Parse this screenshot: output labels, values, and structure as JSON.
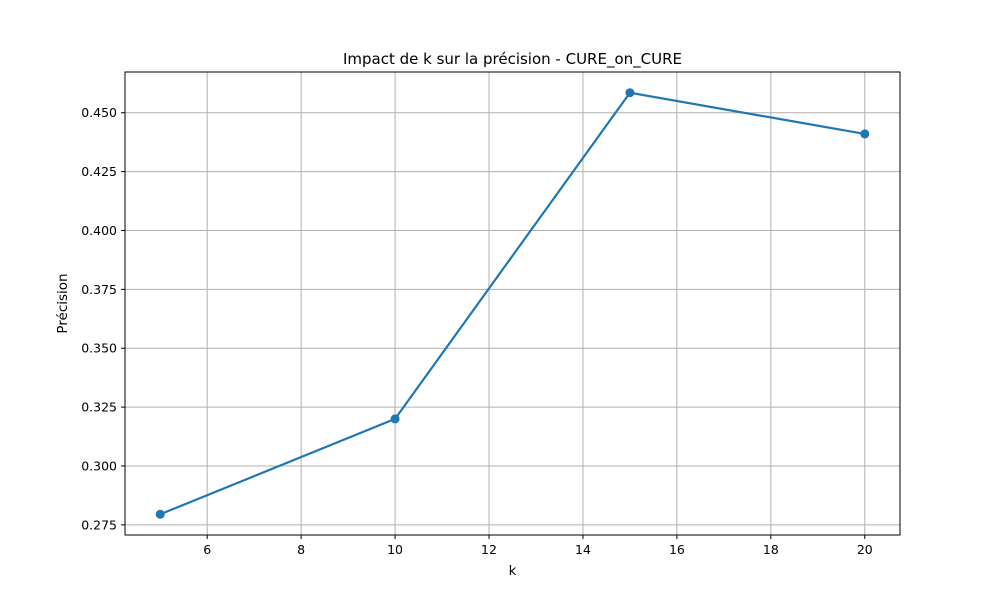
{
  "chart_data": {
    "type": "line",
    "title": "Impact de k sur la précision - CURE_on_CURE",
    "xlabel": "k",
    "ylabel": "Précision",
    "x": [
      5,
      10,
      15,
      20
    ],
    "series": [
      {
        "values": [
          0.2795,
          0.32,
          0.4585,
          0.441
        ]
      }
    ],
    "xlim": [
      4.25,
      20.75
    ],
    "ylim": [
      0.2707,
      0.4673
    ],
    "xticks": [
      6,
      8,
      10,
      12,
      14,
      16,
      18,
      20
    ],
    "yticks": [
      0.275,
      0.3,
      0.325,
      0.35,
      0.375,
      0.4,
      0.425,
      0.45
    ],
    "xtick_labels": [
      "6",
      "8",
      "10",
      "12",
      "14",
      "16",
      "18",
      "20"
    ],
    "ytick_labels": [
      "0.275",
      "0.300",
      "0.325",
      "0.350",
      "0.375",
      "0.400",
      "0.425",
      "0.450"
    ],
    "grid": true,
    "line_color": "#1f77b4",
    "marker": "circle"
  }
}
